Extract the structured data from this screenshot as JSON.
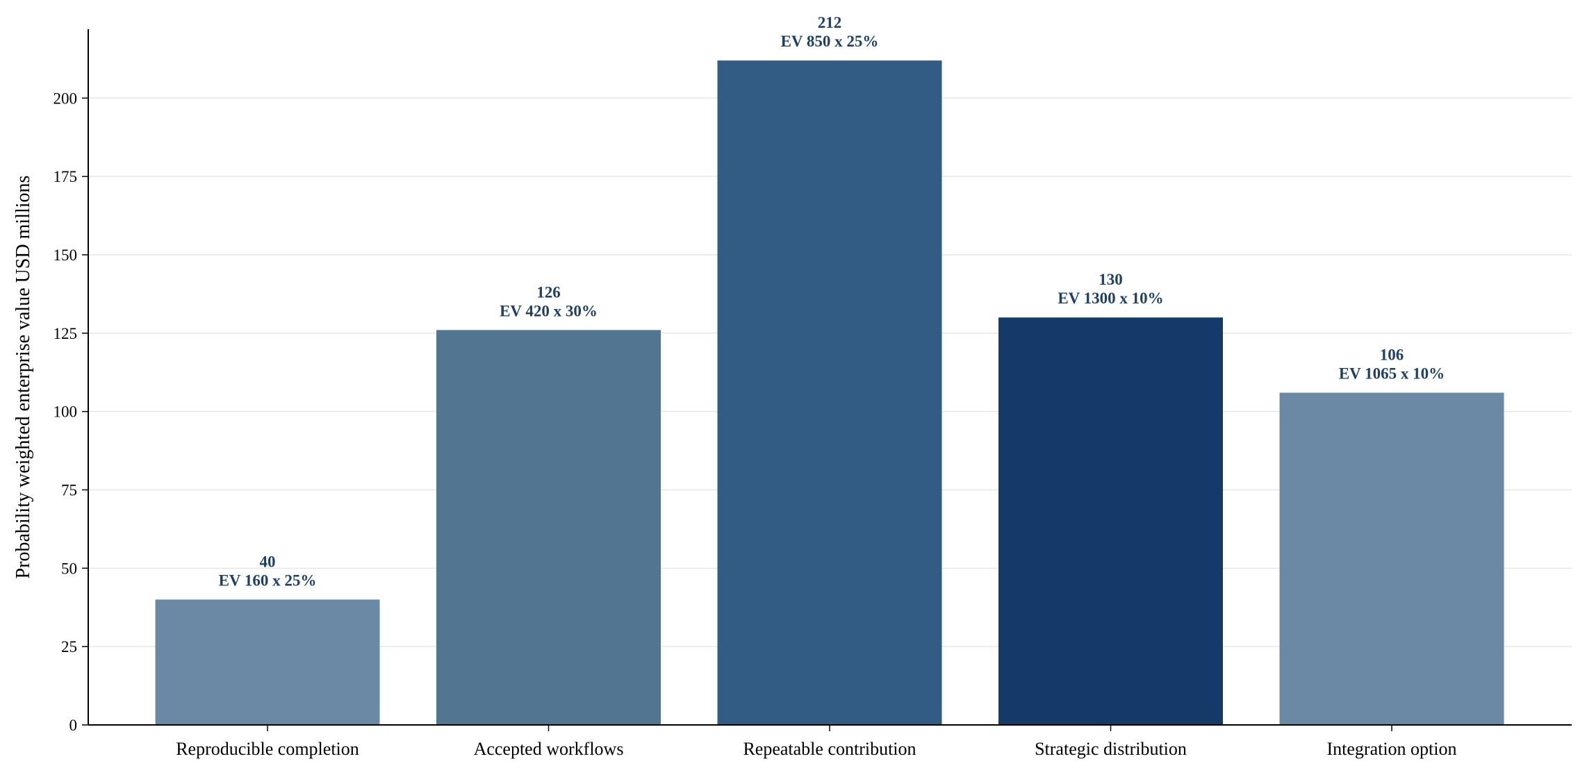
{
  "chart_data": {
    "type": "bar",
    "title": "",
    "xlabel": "",
    "ylabel": "Probability weighted enterprise value USD millions",
    "ylim": [
      0,
      222
    ],
    "yticks": [
      0,
      25,
      50,
      75,
      100,
      125,
      150,
      175,
      200
    ],
    "grid": "horizontal",
    "categories": [
      "Reproducible completion",
      "Accepted workflows",
      "Repeatable contribution",
      "Strategic distribution",
      "Integration option"
    ],
    "values": [
      40,
      126,
      212,
      130,
      106
    ],
    "value_labels": [
      "40",
      "126",
      "212",
      "130",
      "106"
    ],
    "annotations": [
      "EV 160 x 25%",
      "EV 420 x 30%",
      "EV 850 x 25%",
      "EV 1300 x 10%",
      "EV 1065 x 10%"
    ],
    "colors": [
      "#6b88a4",
      "#527592",
      "#325c83",
      "#143a69",
      "#6b88a4"
    ],
    "label_color": "#1f3f66",
    "grid_color": "#e6e6e6",
    "axis_color": "#000000"
  }
}
